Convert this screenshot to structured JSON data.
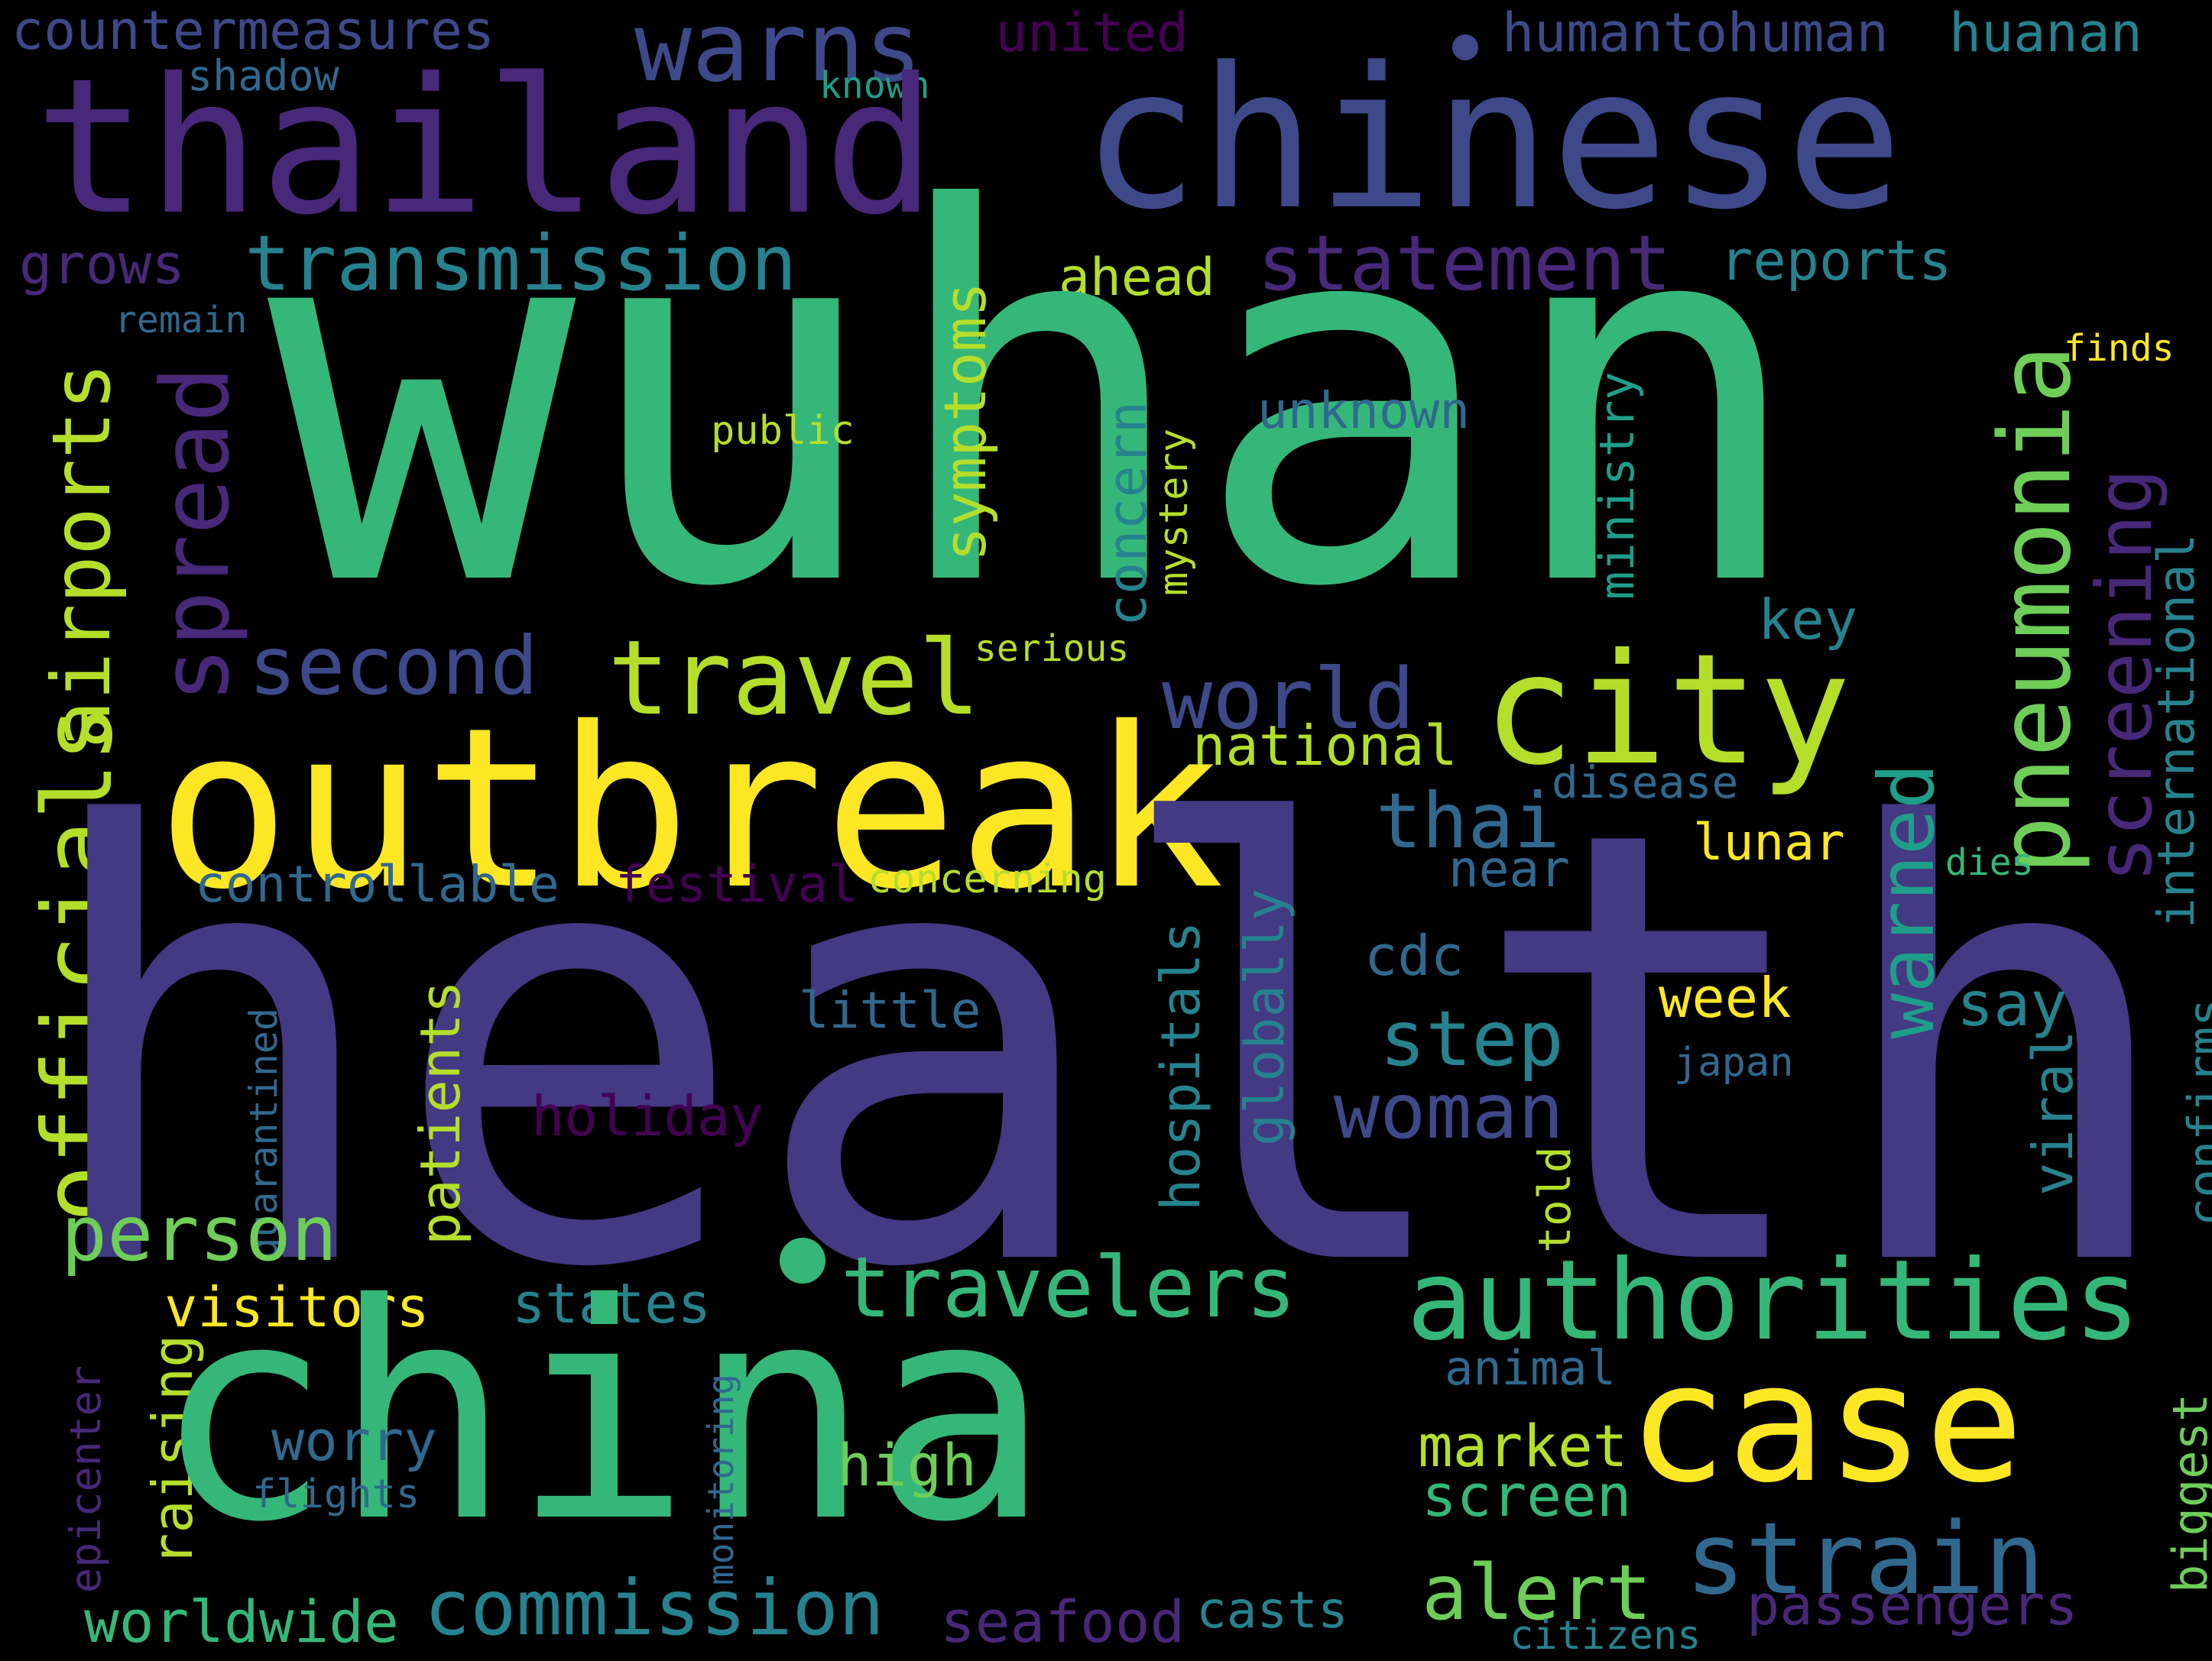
{
  "cloud": {
    "background": "#000000",
    "palette": [
      "#440154",
      "#482878",
      "#3e4989",
      "#31688e",
      "#26828e",
      "#1f9e89",
      "#35b779",
      "#6ece58",
      "#b5de2b",
      "#fde725"
    ],
    "words": [
      {
        "text": "countermeasures",
        "color": "#3e4989"
      },
      {
        "text": "united",
        "color": "#440154"
      },
      {
        "text": "warns",
        "color": "#3e4989"
      },
      {
        "text": "humantohuman",
        "color": "#3e4989"
      },
      {
        "text": "huanan",
        "color": "#26828e"
      },
      {
        "text": "shadow",
        "color": "#31688e"
      },
      {
        "text": "known",
        "color": "#1f9e89"
      },
      {
        "text": "thailand",
        "color": "#482878"
      },
      {
        "text": "chinese",
        "color": "#3e4989"
      },
      {
        "text": "grows",
        "color": "#482878"
      },
      {
        "text": "transmission",
        "color": "#26828e"
      },
      {
        "text": "statement",
        "color": "#482878"
      },
      {
        "text": "reports",
        "color": "#26828e"
      },
      {
        "text": "remain",
        "color": "#31688e"
      },
      {
        "text": "ahead",
        "color": "#b5de2b"
      },
      {
        "text": "finds",
        "color": "#fde725"
      },
      {
        "text": "wuhan",
        "color": "#35b779"
      },
      {
        "text": "public",
        "color": "#b5de2b"
      },
      {
        "text": "unknown",
        "color": "#31688e"
      },
      {
        "text": "airports",
        "color": "#b5de2b"
      },
      {
        "text": "spread",
        "color": "#482878"
      },
      {
        "text": "symptoms",
        "color": "#b5de2b"
      },
      {
        "text": "concern",
        "color": "#26828e"
      },
      {
        "text": "mystery",
        "color": "#b5de2b"
      },
      {
        "text": "ministry",
        "color": "#1f9e89"
      },
      {
        "text": "pneumonia",
        "color": "#6ece58"
      },
      {
        "text": "screening",
        "color": "#482878"
      },
      {
        "text": "international",
        "color": "#26828e"
      },
      {
        "text": "key",
        "color": "#26828e"
      },
      {
        "text": "second",
        "color": "#3e4989"
      },
      {
        "text": "travel",
        "color": "#b5de2b"
      },
      {
        "text": "serious",
        "color": "#b5de2b"
      },
      {
        "text": "world",
        "color": "#3e4989"
      },
      {
        "text": "city",
        "color": "#b5de2b"
      },
      {
        "text": "outbreak",
        "color": "#fde725"
      },
      {
        "text": "national",
        "color": "#b5de2b"
      },
      {
        "text": "disease",
        "color": "#31688e"
      },
      {
        "text": "thai",
        "color": "#31688e"
      },
      {
        "text": "lunar",
        "color": "#fde725"
      },
      {
        "text": "dies",
        "color": "#35b779"
      },
      {
        "text": "officials",
        "color": "#b5de2b"
      },
      {
        "text": "controllable",
        "color": "#31688e"
      },
      {
        "text": "festival",
        "color": "#440154"
      },
      {
        "text": "concerning",
        "color": "#b5de2b"
      },
      {
        "text": "near",
        "color": "#31688e"
      },
      {
        "text": "health",
        "color": "#443983"
      },
      {
        "text": "cdc",
        "color": "#31688e"
      },
      {
        "text": "warned",
        "color": "#1f9e89"
      },
      {
        "text": "quarantined",
        "color": "#31688e"
      },
      {
        "text": "little",
        "color": "#31688e"
      },
      {
        "text": "week",
        "color": "#fde725"
      },
      {
        "text": "say",
        "color": "#26828e"
      },
      {
        "text": "patients",
        "color": "#b5de2b"
      },
      {
        "text": "hospitals",
        "color": "#26828e"
      },
      {
        "text": "globally",
        "color": "#26828e"
      },
      {
        "text": "step",
        "color": "#26828e"
      },
      {
        "text": "japan",
        "color": "#31688e"
      },
      {
        "text": "woman",
        "color": "#3e4989"
      },
      {
        "text": "holiday",
        "color": "#440154"
      },
      {
        "text": "confirms",
        "color": "#26828e"
      },
      {
        "text": "viral",
        "color": "#26828e"
      },
      {
        "text": "told",
        "color": "#b5de2b"
      },
      {
        "text": "person",
        "color": "#6ece58"
      },
      {
        "text": "travelers",
        "color": "#35b779"
      },
      {
        "text": "authorities",
        "color": "#35b779"
      },
      {
        "text": "visitors",
        "color": "#fde725"
      },
      {
        "text": "states",
        "color": "#26828e"
      },
      {
        "text": "epicenter",
        "color": "#482878"
      },
      {
        "text": "raising",
        "color": "#b5de2b"
      },
      {
        "text": "china",
        "color": "#35b779"
      },
      {
        "text": "case",
        "color": "#fde725"
      },
      {
        "text": "animal",
        "color": "#31688e"
      },
      {
        "text": "biggest",
        "color": "#6ece58"
      },
      {
        "text": "monitoring",
        "color": "#31688e"
      },
      {
        "text": "worry",
        "color": "#31688e"
      },
      {
        "text": "market",
        "color": "#b5de2b"
      },
      {
        "text": "high",
        "color": "#6ece58"
      },
      {
        "text": "flights",
        "color": "#31688e"
      },
      {
        "text": "screen",
        "color": "#35b779"
      },
      {
        "text": "strain",
        "color": "#31688e"
      },
      {
        "text": "alert",
        "color": "#6ece58"
      },
      {
        "text": "worldwide",
        "color": "#35b779"
      },
      {
        "text": "commission",
        "color": "#26828e"
      },
      {
        "text": "seafood",
        "color": "#482878"
      },
      {
        "text": "casts",
        "color": "#26828e"
      },
      {
        "text": "passengers",
        "color": "#482878"
      },
      {
        "text": "citizens",
        "color": "#26828e"
      }
    ]
  }
}
